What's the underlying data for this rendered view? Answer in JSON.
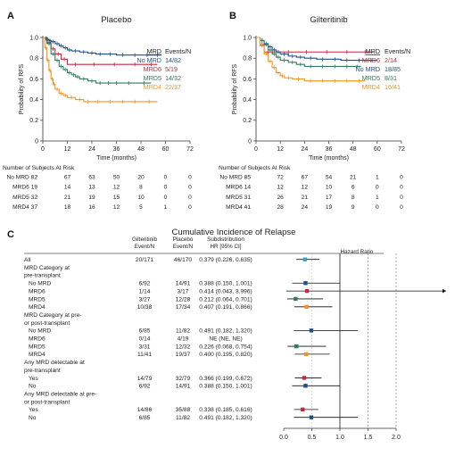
{
  "chart_data": [
    {
      "panel": "A",
      "type": "line",
      "title": "Placebo",
      "xlabel": "Time (months)",
      "ylabel": "Probability of RFS",
      "xlim": [
        0,
        72
      ],
      "ylim": [
        0,
        1.0
      ],
      "x_ticks": [
        "0",
        "12",
        "24",
        "36",
        "48",
        "60",
        "72"
      ],
      "y_ticks": [
        "0",
        "0.2",
        "0.4",
        "0.6",
        "0.8",
        "1.0"
      ],
      "legend_header": {
        "mrd": "MRD",
        "events": "Events/N"
      },
      "legend_placement": "right",
      "series": [
        {
          "name": "No MRD",
          "events": "14/82",
          "color": "#1f4f8b",
          "x": [
            0,
            1,
            2,
            3,
            4,
            6,
            8,
            10,
            12,
            14,
            18,
            22,
            26,
            30,
            36,
            42,
            48,
            54,
            58
          ],
          "y": [
            1.0,
            0.99,
            0.98,
            0.97,
            0.96,
            0.94,
            0.92,
            0.9,
            0.88,
            0.87,
            0.86,
            0.85,
            0.84,
            0.84,
            0.83,
            0.83,
            0.83,
            0.83,
            0.83
          ]
        },
        {
          "name": "MRD6",
          "events": "5/19",
          "color": "#c8283c",
          "x": [
            0,
            2,
            4,
            6,
            9,
            12,
            20,
            30,
            40,
            50,
            56
          ],
          "y": [
            1.0,
            0.95,
            0.89,
            0.84,
            0.79,
            0.74,
            0.74,
            0.74,
            0.74,
            0.74,
            0.74
          ]
        },
        {
          "name": "MRD5",
          "events": "14/32",
          "color": "#2e7d5b",
          "x": [
            0,
            2,
            4,
            6,
            8,
            10,
            12,
            14,
            16,
            18,
            22,
            26,
            30,
            34,
            38,
            46,
            53
          ],
          "y": [
            1.0,
            0.94,
            0.84,
            0.78,
            0.72,
            0.69,
            0.66,
            0.64,
            0.62,
            0.6,
            0.58,
            0.56,
            0.56,
            0.56,
            0.56,
            0.56,
            0.56
          ]
        },
        {
          "name": "MRD4",
          "events": "22/37",
          "color": "#f5931f",
          "x": [
            0,
            1,
            2,
            3,
            4,
            5,
            6,
            8,
            10,
            12,
            16,
            20,
            24,
            30,
            36,
            42,
            48,
            56
          ],
          "y": [
            1.0,
            0.9,
            0.78,
            0.68,
            0.6,
            0.55,
            0.5,
            0.46,
            0.44,
            0.42,
            0.4,
            0.38,
            0.38,
            0.38,
            0.38,
            0.38,
            0.38,
            0.38
          ]
        }
      ],
      "at_risk": {
        "title": "Number of Subjects At Risk",
        "rows": [
          {
            "label": "No MRD 82",
            "values": [
              "67",
              "63",
              "50",
              "20",
              "0",
              "0"
            ]
          },
          {
            "label": "MRD6 19",
            "values": [
              "14",
              "13",
              "12",
              "8",
              "0",
              "0"
            ]
          },
          {
            "label": "MRD5 32",
            "values": [
              "21",
              "19",
              "15",
              "10",
              "0",
              "0"
            ]
          },
          {
            "label": "MRD4 37",
            "values": [
              "18",
              "16",
              "12",
              "5",
              "1",
              "0"
            ]
          }
        ]
      }
    },
    {
      "panel": "B",
      "type": "line",
      "title": "Gilteritinib",
      "xlabel": "Time (months)",
      "ylabel": "Probability of RFS",
      "xlim": [
        0,
        72
      ],
      "ylim": [
        0,
        1.0
      ],
      "x_ticks": [
        "0",
        "12",
        "24",
        "36",
        "48",
        "60",
        "72"
      ],
      "y_ticks": [
        "0",
        "0.2",
        "0.4",
        "0.6",
        "0.8",
        "1.0"
      ],
      "legend_header": {
        "mrd": "MRD",
        "events": "Events/N"
      },
      "legend_placement": "right",
      "series": [
        {
          "name": "MRD6",
          "events": "2/14",
          "color": "#c8283c",
          "x": [
            0,
            2,
            4,
            8,
            12,
            20,
            30,
            40,
            50,
            58
          ],
          "y": [
            1.0,
            0.93,
            0.86,
            0.86,
            0.86,
            0.86,
            0.86,
            0.86,
            0.86,
            0.86
          ]
        },
        {
          "name": "No MRD",
          "events": "18/85",
          "color": "#1f4f8b",
          "x": [
            0,
            2,
            4,
            6,
            8,
            10,
            12,
            16,
            20,
            24,
            30,
            36,
            42,
            48,
            54,
            60
          ],
          "y": [
            1.0,
            0.97,
            0.94,
            0.91,
            0.88,
            0.86,
            0.84,
            0.82,
            0.81,
            0.8,
            0.79,
            0.79,
            0.78,
            0.78,
            0.78,
            0.78
          ]
        },
        {
          "name": "MRD5",
          "events": "8/31",
          "color": "#2e7d5b",
          "x": [
            0,
            2,
            4,
            6,
            8,
            10,
            12,
            16,
            20,
            24,
            30,
            36,
            42,
            48,
            52
          ],
          "y": [
            1.0,
            0.97,
            0.93,
            0.88,
            0.84,
            0.81,
            0.78,
            0.76,
            0.74,
            0.72,
            0.72,
            0.72,
            0.72,
            0.72,
            0.72
          ]
        },
        {
          "name": "MRD4",
          "events": "16/41",
          "color": "#f5931f",
          "x": [
            0,
            2,
            4,
            6,
            8,
            10,
            12,
            14,
            18,
            24,
            30,
            36,
            42,
            48,
            54
          ],
          "y": [
            1.0,
            0.92,
            0.84,
            0.77,
            0.71,
            0.66,
            0.63,
            0.61,
            0.6,
            0.58,
            0.58,
            0.58,
            0.58,
            0.58,
            0.58
          ]
        }
      ],
      "at_risk": {
        "title": "Number of Subjects At Risk",
        "rows": [
          {
            "label": "No MRD 85",
            "values": [
              "72",
              "67",
              "54",
              "21",
              "1",
              "0"
            ]
          },
          {
            "label": "MRD6 14",
            "values": [
              "12",
              "12",
              "10",
              "6",
              "0",
              "0"
            ]
          },
          {
            "label": "MRD5 31",
            "values": [
              "26",
              "21",
              "17",
              "8",
              "1",
              "0"
            ]
          },
          {
            "label": "MRD4 41",
            "values": [
              "28",
              "24",
              "19",
              "9",
              "0",
              "0"
            ]
          }
        ]
      }
    },
    {
      "panel": "C",
      "type": "forest",
      "title": "Cumulative Incidence of Relapse",
      "columns": {
        "gilt": [
          "Gilteritinib",
          "Event/N"
        ],
        "plac": [
          "Placebo",
          "Event/N"
        ],
        "hr": [
          "Subdistribution",
          "HR [95% CI]"
        ],
        "plot": "Hazard Ratio"
      },
      "x_ticks": [
        0.0,
        0.5,
        1.0,
        1.5,
        2.0
      ],
      "x_tick_labels": [
        "0.0",
        "0.5",
        "1.0",
        "1.5",
        "2.0"
      ],
      "xlim": [
        0,
        2.0
      ],
      "rows": [
        {
          "label": "All",
          "gilt": "20/171",
          "plac": "46/170",
          "hr_text": "0.379 (0.226, 0.635)",
          "hr": 0.379,
          "lo": 0.226,
          "hi": 0.635,
          "color": "#3aa0c8"
        },
        {
          "label": "MRD Category at",
          "header": true
        },
        {
          "label": "pre-transplant",
          "header": true
        },
        {
          "label": "No MRD",
          "indent": true,
          "gilt": "6/92",
          "plac": "14/91",
          "hr_text": "0.388 (0.150, 1.001)",
          "hr": 0.388,
          "lo": 0.15,
          "hi": 1.001,
          "color": "#1f4f8b"
        },
        {
          "label": "MRD6",
          "indent": true,
          "gilt": "1/14",
          "plac": "3/17",
          "hr_text": "0.414 (0.043, 3.996)",
          "hr": 0.414,
          "lo": 0.043,
          "hi": 3.996,
          "color": "#c8283c"
        },
        {
          "label": "MRD5",
          "indent": true,
          "gilt": "3/27",
          "plac": "12/28",
          "hr_text": "0.212 (0.064, 0.701)",
          "hr": 0.212,
          "lo": 0.064,
          "hi": 0.701,
          "color": "#2e7d5b"
        },
        {
          "label": "MRD4",
          "indent": true,
          "gilt": "10/38",
          "plac": "17/34",
          "hr_text": "0.407 (0.191, 0.866)",
          "hr": 0.407,
          "lo": 0.191,
          "hi": 0.866,
          "color": "#f5931f"
        },
        {
          "label": "MRD Category at pre-",
          "header": true
        },
        {
          "label": "or post-transplant",
          "header": true
        },
        {
          "label": "No MRD",
          "indent": true,
          "gilt": "6/85",
          "plac": "11/82",
          "hr_text": "0.491 (0.182, 1.320)",
          "hr": 0.491,
          "lo": 0.182,
          "hi": 1.32,
          "color": "#1f4f8b"
        },
        {
          "label": "MRD6",
          "indent": true,
          "gilt": "0/14",
          "plac": "4/19",
          "hr_text": "NE (NE, NE)"
        },
        {
          "label": "MRD5",
          "indent": true,
          "gilt": "3/31",
          "plac": "12/32",
          "hr_text": "0.226 (0.068, 0.754)",
          "hr": 0.226,
          "lo": 0.068,
          "hi": 0.754,
          "color": "#2e7d5b"
        },
        {
          "label": "MRD4",
          "indent": true,
          "gilt": "11/41",
          "plac": "19/37",
          "hr_text": "0.400 (0.195, 0.820)",
          "hr": 0.4,
          "lo": 0.195,
          "hi": 0.82,
          "color": "#f5931f"
        },
        {
          "label": "Any MRD detectable at",
          "header": true
        },
        {
          "label": "pre-transplant",
          "header": true
        },
        {
          "label": "Yes",
          "indent": true,
          "gilt": "14/79",
          "plac": "32/79",
          "hr_text": "0.366 (0.199, 0.672)",
          "hr": 0.366,
          "lo": 0.199,
          "hi": 0.672,
          "color": "#c8283c"
        },
        {
          "label": "No",
          "indent": true,
          "gilt": "6/92",
          "plac": "14/91",
          "hr_text": "0.388 (0.150, 1.001)",
          "hr": 0.388,
          "lo": 0.15,
          "hi": 1.001,
          "color": "#1f4f8b"
        },
        {
          "label": "Any MRD detectable at pre-",
          "header": true
        },
        {
          "label": "or post-transplant",
          "header": true
        },
        {
          "label": "Yes",
          "indent": true,
          "gilt": "14/86",
          "plac": "35/88",
          "hr_text": "0.338 (0.185, 0.616)",
          "hr": 0.338,
          "lo": 0.185,
          "hi": 0.616,
          "color": "#c8283c"
        },
        {
          "label": "No",
          "indent": true,
          "gilt": "6/85",
          "plac": "11/82",
          "hr_text": "0.491 (0.182, 1.320)",
          "hr": 0.491,
          "lo": 0.182,
          "hi": 1.32,
          "color": "#1f4f8b"
        }
      ]
    }
  ]
}
